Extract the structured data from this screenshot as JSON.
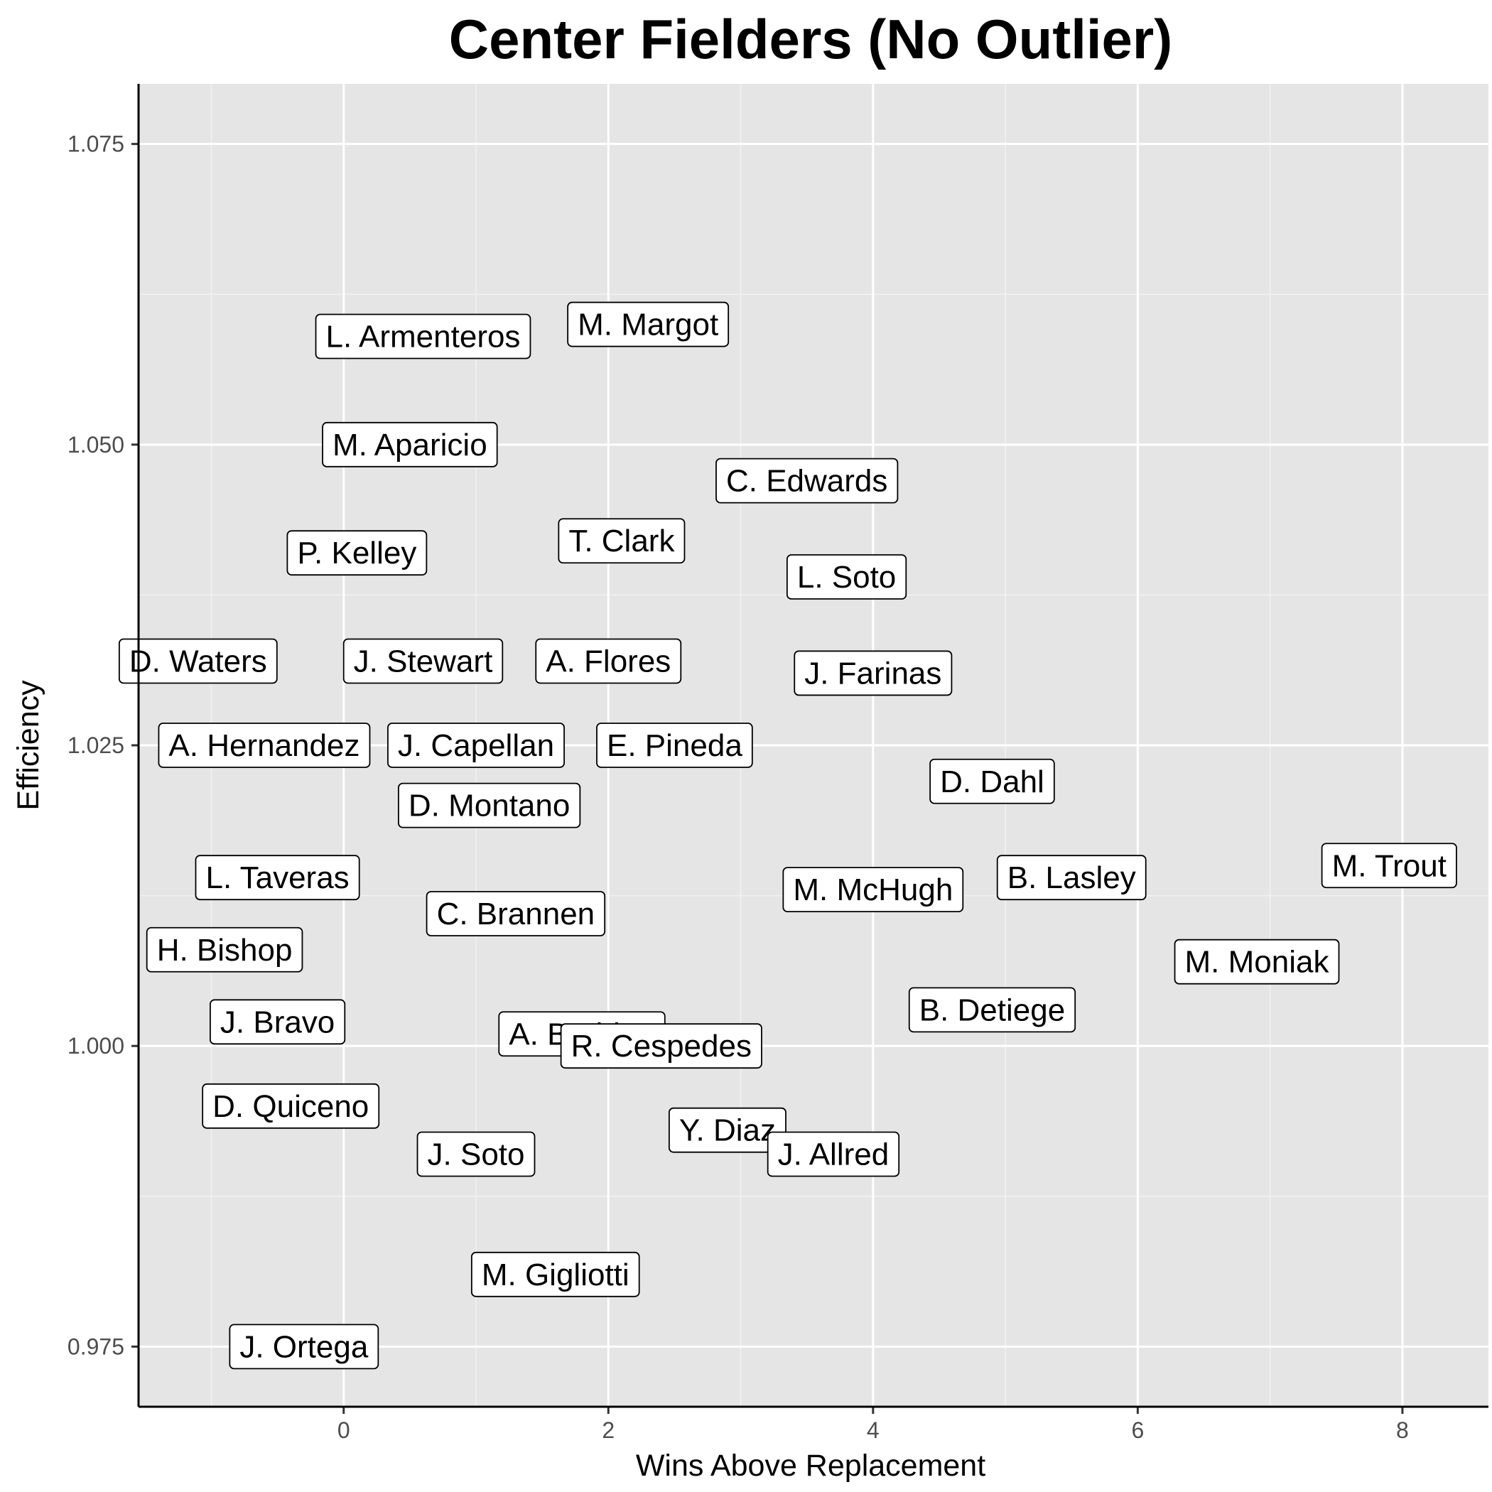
{
  "chart_data": {
    "type": "scatter",
    "title": "Center Fielders (No Outlier)",
    "xlabel": "Wins Above Replacement",
    "ylabel": "Efficiency",
    "xlim": [
      -1.55,
      8.65
    ],
    "ylim": [
      0.97,
      1.08
    ],
    "xticks": [
      0,
      2,
      4,
      6,
      8
    ],
    "xtick_labels": [
      "0",
      "2",
      "4",
      "6",
      "8"
    ],
    "yticks": [
      0.975,
      1.0,
      1.025,
      1.05,
      1.075
    ],
    "ytick_labels": [
      "0.975",
      "1.000",
      "1.025",
      "1.050",
      "1.075"
    ],
    "grid": true,
    "legend": "none",
    "points": [
      {
        "label": "L. Armenteros",
        "x": 0.6,
        "y": 1.059
      },
      {
        "label": "M. Margot",
        "x": 2.3,
        "y": 1.06
      },
      {
        "label": "M. Aparicio",
        "x": 0.5,
        "y": 1.05
      },
      {
        "label": "C. Edwards",
        "x": 3.5,
        "y": 1.047
      },
      {
        "label": "P. Kelley",
        "x": 0.1,
        "y": 1.041
      },
      {
        "label": "T. Clark",
        "x": 2.1,
        "y": 1.042
      },
      {
        "label": "L. Soto",
        "x": 3.8,
        "y": 1.039
      },
      {
        "label": "D. Waters",
        "x": -1.1,
        "y": 1.032
      },
      {
        "label": "J. Stewart",
        "x": 0.6,
        "y": 1.032
      },
      {
        "label": "A. Flores",
        "x": 2.0,
        "y": 1.032
      },
      {
        "label": "J. Farinas",
        "x": 4.0,
        "y": 1.031
      },
      {
        "label": "A. Hernandez",
        "x": -0.6,
        "y": 1.025
      },
      {
        "label": "J. Capellan",
        "x": 1.0,
        "y": 1.025
      },
      {
        "label": "E. Pineda",
        "x": 2.5,
        "y": 1.025
      },
      {
        "label": "D. Dahl",
        "x": 4.9,
        "y": 1.022
      },
      {
        "label": "D. Montano",
        "x": 1.1,
        "y": 1.02
      },
      {
        "label": "L. Taveras",
        "x": -0.5,
        "y": 1.014
      },
      {
        "label": "M. Trout",
        "x": 7.9,
        "y": 1.015
      },
      {
        "label": "B. Lasley",
        "x": 5.5,
        "y": 1.014
      },
      {
        "label": "M. McHugh",
        "x": 4.0,
        "y": 1.013
      },
      {
        "label": "C. Brannen",
        "x": 1.3,
        "y": 1.011
      },
      {
        "label": "H. Bishop",
        "x": -0.9,
        "y": 1.008
      },
      {
        "label": "M. Moniak",
        "x": 6.9,
        "y": 1.007
      },
      {
        "label": "B. Detiege",
        "x": 4.9,
        "y": 1.003
      },
      {
        "label": "J. Bravo",
        "x": -0.5,
        "y": 1.002
      },
      {
        "label": "A. Baddoo",
        "x": 1.8,
        "y": 1.001
      },
      {
        "label": "R. Cespedes",
        "x": 2.4,
        "y": 1.0
      },
      {
        "label": "D. Quiceno",
        "x": -0.4,
        "y": 0.995
      },
      {
        "label": "Y. Diaz",
        "x": 2.9,
        "y": 0.993
      },
      {
        "label": "J. Soto",
        "x": 1.0,
        "y": 0.991
      },
      {
        "label": "J. Allred",
        "x": 3.7,
        "y": 0.991
      },
      {
        "label": "M. Gigliotti",
        "x": 1.6,
        "y": 0.981
      },
      {
        "label": "J. Ortega",
        "x": -0.3,
        "y": 0.975
      }
    ]
  }
}
